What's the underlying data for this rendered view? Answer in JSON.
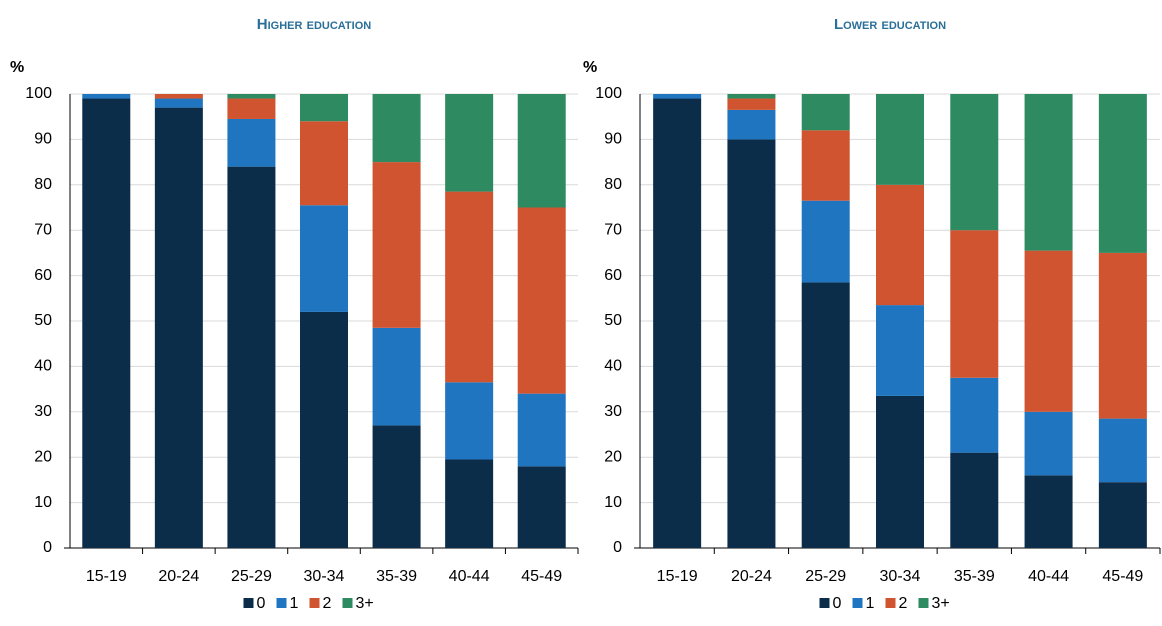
{
  "chart_data": [
    {
      "type": "bar",
      "stacked": true,
      "title": "Higher education",
      "y_label": "%",
      "categories": [
        "15-19",
        "20-24",
        "25-29",
        "30-34",
        "35-39",
        "40-44",
        "45-49"
      ],
      "series": [
        {
          "name": "0",
          "color": "#0b2d4a",
          "values": [
            99,
            97,
            84,
            52,
            27,
            19.5,
            18
          ]
        },
        {
          "name": "1",
          "color": "#1f75c0",
          "values": [
            1,
            2,
            10.5,
            23.5,
            21.5,
            17,
            16
          ]
        },
        {
          "name": "2",
          "color": "#d15430",
          "values": [
            0,
            1,
            4.5,
            18.5,
            36.5,
            42,
            41
          ]
        },
        {
          "name": "3+",
          "color": "#2e8a60",
          "values": [
            0,
            0,
            1,
            6,
            15,
            21.5,
            25
          ]
        }
      ],
      "ylim": [
        0,
        100
      ],
      "yticks": [
        0,
        10,
        20,
        30,
        40,
        50,
        60,
        70,
        80,
        90,
        100
      ],
      "grid": true
    },
    {
      "type": "bar",
      "stacked": true,
      "title": "Lower education",
      "y_label": "%",
      "categories": [
        "15-19",
        "20-24",
        "25-29",
        "30-34",
        "35-39",
        "40-44",
        "45-49"
      ],
      "series": [
        {
          "name": "0",
          "color": "#0b2d4a",
          "values": [
            99,
            90,
            58.5,
            33.5,
            21,
            16,
            14.5
          ]
        },
        {
          "name": "1",
          "color": "#1f75c0",
          "values": [
            1,
            6.5,
            18,
            20,
            16.5,
            14,
            14
          ]
        },
        {
          "name": "2",
          "color": "#d15430",
          "values": [
            0,
            2.5,
            15.5,
            26.5,
            32.5,
            35.5,
            36.5
          ]
        },
        {
          "name": "3+",
          "color": "#2e8a60",
          "values": [
            0,
            1,
            8,
            20,
            30,
            34.5,
            35
          ]
        }
      ],
      "ylim": [
        0,
        100
      ],
      "yticks": [
        0,
        10,
        20,
        30,
        40,
        50,
        60,
        70,
        80,
        90,
        100
      ],
      "grid": true
    }
  ]
}
